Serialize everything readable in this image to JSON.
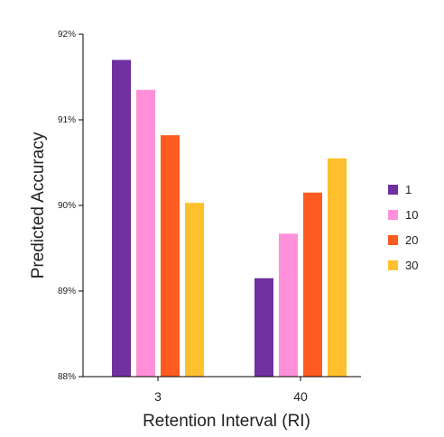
{
  "chart_data": {
    "type": "bar",
    "title": "",
    "xlabel": "Retention Interval (RI)",
    "ylabel": "Predicted Accuracy",
    "categories": [
      "3",
      "40"
    ],
    "series": [
      {
        "name": "1",
        "color": "#7030A0",
        "values": [
          91.7,
          89.15
        ]
      },
      {
        "name": "10",
        "color": "#FF8FD8",
        "values": [
          91.35,
          89.67
        ]
      },
      {
        "name": "20",
        "color": "#FF5A1F",
        "values": [
          90.82,
          90.15
        ]
      },
      {
        "name": "30",
        "color": "#FFC02E",
        "values": [
          90.03,
          90.55
        ]
      }
    ],
    "ylim": [
      88,
      92
    ],
    "yticks": [
      88,
      89,
      90,
      91,
      92
    ],
    "ytick_labels": [
      "88%",
      "89%",
      "90%",
      "91%",
      "92%"
    ],
    "legend_position": "right",
    "grid": false
  }
}
